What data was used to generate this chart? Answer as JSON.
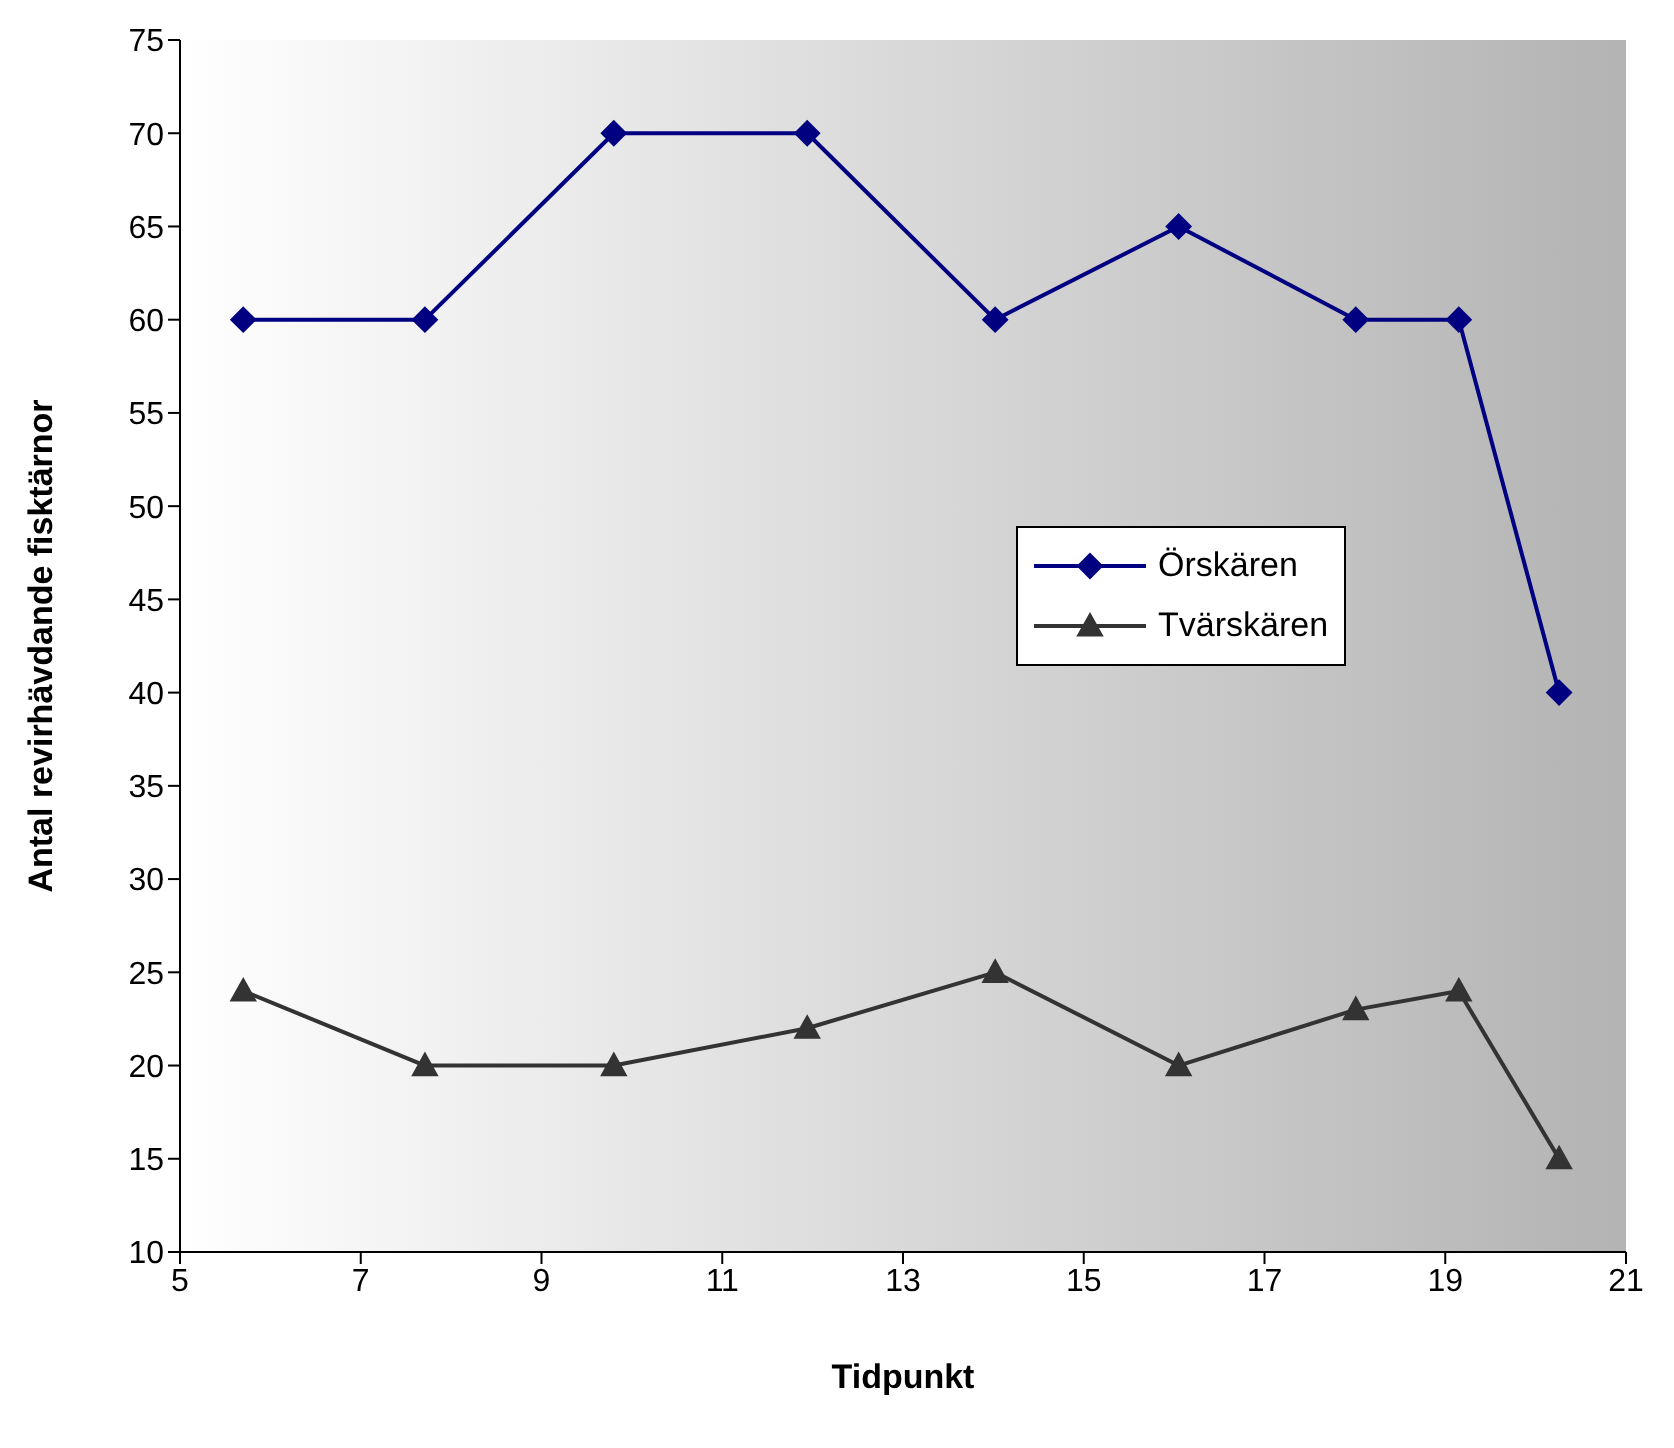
{
  "chart_data": {
    "type": "line",
    "xlabel": "Tidpunkt",
    "ylabel": "Antal revirhävdande fisktärnor",
    "xlim": [
      5,
      21
    ],
    "xticks": [
      5,
      7,
      9,
      11,
      13,
      15,
      17,
      19,
      21
    ],
    "ylim": [
      10,
      75
    ],
    "yticks": [
      10,
      15,
      20,
      25,
      30,
      35,
      40,
      45,
      50,
      55,
      60,
      65,
      70,
      75
    ],
    "x": [
      5.7,
      7.71,
      9.8,
      11.94,
      14.02,
      16.05,
      18.01,
      19.15,
      20.26
    ],
    "legend": "right",
    "grid": false,
    "series": [
      {
        "name": "Örskären",
        "color": "#000080",
        "marker": "diamond",
        "values": [
          60,
          60,
          70,
          70,
          60,
          65,
          60,
          60,
          40
        ]
      },
      {
        "name": "Tvärskären",
        "color": "#333333",
        "marker": "triangle",
        "values": [
          24,
          20,
          20,
          22,
          25,
          20,
          23,
          24,
          15
        ]
      }
    ]
  }
}
